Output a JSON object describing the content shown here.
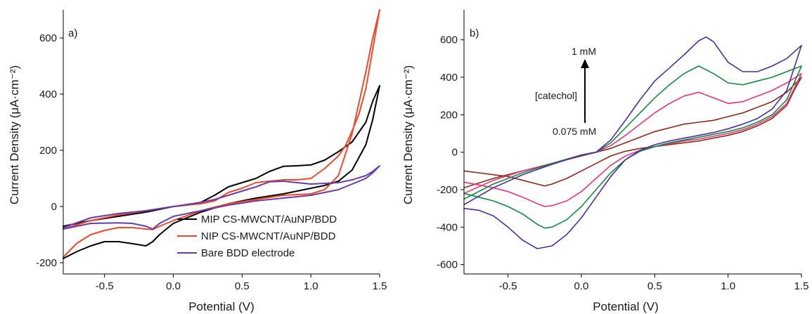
{
  "figure_title": "",
  "chart_data": [
    {
      "type": "line",
      "panel_label": "a)",
      "xlabel": "Potential (V)",
      "ylabel": "Current Density (μA·cm⁻²)",
      "xlim": [
        -0.8,
        1.5
      ],
      "ylim": [
        -240,
        700
      ],
      "xticks": [
        -0.5,
        0.0,
        0.5,
        1.0,
        1.5
      ],
      "xtick_labels": [
        "-0.5",
        "0.0",
        "0.5",
        "1.0",
        "1.5"
      ],
      "yticks": [
        -200,
        0,
        200,
        400,
        600
      ],
      "ytick_labels": [
        "-200",
        "0",
        "200",
        "400",
        "600"
      ],
      "grid": false,
      "legend_position": "bottom-right",
      "series": [
        {
          "name": "MIP CS-MWCNT/AuNP/BDD",
          "color": "#000000",
          "x": [
            -0.8,
            -0.7,
            -0.6,
            -0.5,
            -0.4,
            -0.3,
            -0.2,
            -0.15,
            -0.1,
            0.0,
            0.2,
            0.4,
            0.6,
            0.8,
            1.0,
            1.1,
            1.2,
            1.3,
            1.4,
            1.45,
            1.5,
            1.45,
            1.4,
            1.3,
            1.2,
            1.15,
            1.1,
            1.0,
            0.9,
            0.8,
            0.7,
            0.6,
            0.5,
            0.4,
            0.3,
            0.2,
            0.1,
            0.0,
            -0.2,
            -0.4,
            -0.6,
            -0.8
          ],
          "y": [
            -185,
            -160,
            -140,
            -125,
            -125,
            -132,
            -140,
            -125,
            -100,
            -60,
            -20,
            10,
            30,
            45,
            65,
            75,
            90,
            130,
            220,
            310,
            430,
            375,
            300,
            230,
            195,
            180,
            165,
            148,
            145,
            143,
            125,
            100,
            85,
            70,
            40,
            15,
            5,
            0,
            -20,
            -35,
            -50,
            -70
          ]
        },
        {
          "name": "NIP CS-MWCNT/AuNP/BDD",
          "color": "#f0492a",
          "x": [
            -0.8,
            -0.7,
            -0.6,
            -0.5,
            -0.4,
            -0.3,
            -0.2,
            -0.15,
            -0.1,
            0.0,
            0.2,
            0.4,
            0.6,
            0.8,
            1.0,
            1.1,
            1.2,
            1.3,
            1.4,
            1.45,
            1.5,
            1.45,
            1.4,
            1.35,
            1.3,
            1.25,
            1.2,
            1.1,
            1.0,
            0.9,
            0.8,
            0.7,
            0.6,
            0.5,
            0.4,
            0.3,
            0.2,
            0.1,
            0.0,
            -0.2,
            -0.4,
            -0.6,
            -0.8
          ],
          "y": [
            -180,
            -130,
            -100,
            -85,
            -75,
            -75,
            -80,
            -82,
            -70,
            -50,
            -15,
            10,
            25,
            40,
            45,
            60,
            110,
            260,
            480,
            600,
            700,
            560,
            420,
            330,
            270,
            215,
            180,
            135,
            100,
            95,
            95,
            90,
            85,
            65,
            50,
            20,
            10,
            5,
            0,
            -15,
            -30,
            -50,
            -80
          ]
        },
        {
          "name": "Bare BDD electrode",
          "color": "#6a3ca8",
          "x": [
            -0.8,
            -0.6,
            -0.4,
            -0.3,
            -0.2,
            -0.15,
            -0.1,
            0.0,
            0.2,
            0.4,
            0.6,
            0.8,
            1.0,
            1.2,
            1.3,
            1.4,
            1.45,
            1.5,
            1.45,
            1.4,
            1.3,
            1.2,
            1.0,
            0.9,
            0.8,
            0.7,
            0.6,
            0.5,
            0.4,
            0.3,
            0.2,
            0.0,
            -0.2,
            -0.4,
            -0.6,
            -0.8
          ],
          "y": [
            -80,
            -60,
            -58,
            -60,
            -70,
            -80,
            -60,
            -35,
            -15,
            5,
            20,
            30,
            40,
            60,
            80,
            100,
            120,
            145,
            125,
            110,
            95,
            85,
            80,
            85,
            90,
            88,
            70,
            55,
            40,
            25,
            15,
            0,
            -15,
            -25,
            -40,
            -75
          ]
        }
      ]
    },
    {
      "type": "line",
      "panel_label": "b)",
      "xlabel": "Potential (V)",
      "ylabel": "Current Density (μA·cm⁻²)",
      "xlim": [
        -0.8,
        1.5
      ],
      "ylim": [
        -650,
        760
      ],
      "xticks": [
        -0.5,
        0.0,
        0.5,
        1.0,
        1.5
      ],
      "xtick_labels": [
        "-0.5",
        "0.0",
        "0.5",
        "1.0",
        "1.5"
      ],
      "yticks": [
        -600,
        -400,
        -200,
        0,
        200,
        400,
        600
      ],
      "ytick_labels": [
        "-600",
        "-400",
        "-200",
        "0",
        "200",
        "400",
        "600"
      ],
      "grid": false,
      "annotations": {
        "top_label": "1 mM",
        "middle_label": "[catechol]",
        "bottom_label": "0.075 mM"
      },
      "series": [
        {
          "color": "#8b2a1c",
          "x": [
            -0.8,
            -0.6,
            -0.4,
            -0.2,
            0.0,
            0.1,
            0.2,
            0.3,
            0.4,
            0.5,
            0.6,
            0.7,
            0.8,
            0.9,
            1.0,
            1.1,
            1.2,
            1.3,
            1.4,
            1.5,
            1.45,
            1.4,
            1.3,
            1.2,
            1.1,
            1.0,
            0.9,
            0.8,
            0.7,
            0.6,
            0.5,
            0.4,
            0.3,
            0.2,
            0.1,
            0.0,
            -0.1,
            -0.2,
            -0.25,
            -0.3,
            -0.4,
            -0.5,
            -0.6,
            -0.7,
            -0.8
          ],
          "y": [
            -190,
            -140,
            -100,
            -60,
            -20,
            0,
            20,
            50,
            80,
            110,
            130,
            150,
            160,
            170,
            190,
            210,
            240,
            270,
            320,
            400,
            330,
            250,
            180,
            140,
            110,
            90,
            75,
            60,
            50,
            40,
            30,
            20,
            5,
            -20,
            -60,
            -100,
            -140,
            -170,
            -180,
            -170,
            -150,
            -130,
            -120,
            -110,
            -100
          ]
        },
        {
          "color": "#e8337a",
          "x": [
            -0.8,
            -0.6,
            -0.4,
            -0.2,
            0.0,
            0.1,
            0.2,
            0.3,
            0.4,
            0.5,
            0.6,
            0.7,
            0.8,
            0.9,
            1.0,
            1.1,
            1.2,
            1.3,
            1.4,
            1.5,
            1.45,
            1.4,
            1.3,
            1.2,
            1.1,
            1.0,
            0.9,
            0.8,
            0.7,
            0.6,
            0.5,
            0.4,
            0.3,
            0.2,
            0.1,
            0.0,
            -0.1,
            -0.2,
            -0.25,
            -0.3,
            -0.4,
            -0.5,
            -0.6,
            -0.7,
            -0.8
          ],
          "y": [
            -220,
            -150,
            -100,
            -60,
            -15,
            0,
            35,
            90,
            150,
            210,
            260,
            300,
            320,
            290,
            260,
            270,
            300,
            330,
            370,
            420,
            340,
            260,
            190,
            150,
            120,
            100,
            85,
            70,
            60,
            45,
            30,
            10,
            -20,
            -70,
            -140,
            -210,
            -260,
            -285,
            -290,
            -275,
            -240,
            -210,
            -190,
            -175,
            -160
          ]
        },
        {
          "color": "#138a3e",
          "x": [
            -0.8,
            -0.6,
            -0.4,
            -0.2,
            0.0,
            0.1,
            0.2,
            0.3,
            0.4,
            0.5,
            0.6,
            0.7,
            0.8,
            0.9,
            1.0,
            1.1,
            1.2,
            1.3,
            1.4,
            1.5,
            1.45,
            1.4,
            1.3,
            1.2,
            1.1,
            1.0,
            0.9,
            0.8,
            0.7,
            0.6,
            0.5,
            0.4,
            0.3,
            0.2,
            0.1,
            0.0,
            -0.1,
            -0.2,
            -0.25,
            -0.3,
            -0.4,
            -0.5,
            -0.6,
            -0.7,
            -0.8
          ],
          "y": [
            -250,
            -170,
            -110,
            -60,
            -15,
            0,
            50,
            130,
            210,
            290,
            360,
            420,
            460,
            420,
            370,
            360,
            380,
            400,
            430,
            460,
            370,
            280,
            200,
            160,
            130,
            110,
            95,
            80,
            65,
            50,
            30,
            5,
            -40,
            -110,
            -200,
            -290,
            -360,
            -400,
            -405,
            -385,
            -330,
            -290,
            -260,
            -240,
            -220
          ]
        },
        {
          "color": "#4b2e9e",
          "x": [
            -0.8,
            -0.6,
            -0.4,
            -0.2,
            0.0,
            0.1,
            0.2,
            0.3,
            0.4,
            0.5,
            0.6,
            0.7,
            0.8,
            0.85,
            0.9,
            1.0,
            1.1,
            1.2,
            1.3,
            1.4,
            1.5,
            1.45,
            1.4,
            1.3,
            1.2,
            1.1,
            1.0,
            0.9,
            0.8,
            0.7,
            0.6,
            0.5,
            0.4,
            0.3,
            0.2,
            0.1,
            0.0,
            -0.1,
            -0.2,
            -0.3,
            -0.4,
            -0.5,
            -0.6,
            -0.7,
            -0.8
          ],
          "y": [
            -280,
            -190,
            -120,
            -65,
            -15,
            0,
            65,
            170,
            280,
            380,
            450,
            520,
            595,
            615,
            590,
            480,
            430,
            430,
            460,
            500,
            570,
            450,
            330,
            230,
            180,
            150,
            125,
            105,
            90,
            75,
            60,
            40,
            10,
            -40,
            -130,
            -240,
            -350,
            -440,
            -500,
            -515,
            -470,
            -400,
            -340,
            -310,
            -300
          ]
        }
      ]
    }
  ]
}
